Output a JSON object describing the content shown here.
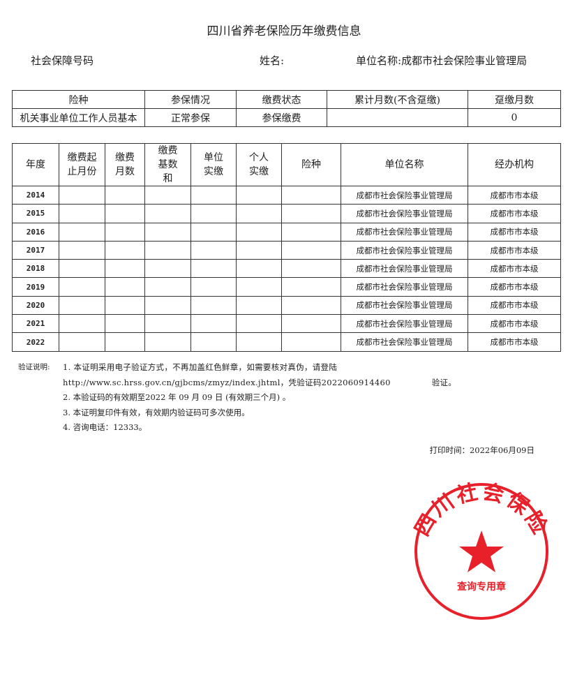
{
  "title": "四川省养老保险历年缴费信息",
  "info": {
    "ssn_label": "社会保障号码",
    "name_label": "姓名:",
    "unit_label": "单位名称:",
    "unit_value": "成都市社会保险事业管理局"
  },
  "summary": {
    "headers": [
      "险种",
      "参保情况",
      "缴费状态",
      "累计月数(不含趸缴)",
      "趸缴月数"
    ],
    "row": [
      "机关事业单位工作人员基本",
      "正常参保",
      "参保缴费",
      "",
      "0"
    ]
  },
  "detail": {
    "headers": [
      "年度",
      "缴费起止月份",
      "缴费月数",
      "缴费基数和",
      "单位实缴",
      "个人实缴",
      "险种",
      "单位名称",
      "经办机构"
    ],
    "rows": [
      {
        "year": "2014",
        "unit": "成都市社会保险事业管理局",
        "agency": "成都市市本级"
      },
      {
        "year": "2015",
        "unit": "成都市社会保险事业管理局",
        "agency": "成都市市本级"
      },
      {
        "year": "2016",
        "unit": "成都市社会保险事业管理局",
        "agency": "成都市市本级"
      },
      {
        "year": "2017",
        "unit": "成都市社会保险事业管理局",
        "agency": "成都市市本级"
      },
      {
        "year": "2018",
        "unit": "成都市社会保险事业管理局",
        "agency": "成都市市本级"
      },
      {
        "year": "2019",
        "unit": "成都市社会保险事业管理局",
        "agency": "成都市市本级"
      },
      {
        "year": "2020",
        "unit": "成都市社会保险事业管理局",
        "agency": "成都市市本级"
      },
      {
        "year": "2021",
        "unit": "成都市社会保险事业管理局",
        "agency": "成都市市本级"
      },
      {
        "year": "2022",
        "unit": "成都市社会保险事业管理局",
        "agency": "成都市市本级"
      }
    ]
  },
  "notes": {
    "label": "验证说明:",
    "items": [
      "1. 本证明采用电子验证方式，不再加盖红色鲜章，如需要核对真伪，请登陆http://www.sc.hrss.gov.cn/gjbcms/zmyz/index.jhtml，凭验证码2022060914460　　　　　验证。",
      "2. 本验证码的有效期至2022 年 09 月 09 日 (有效期三个月) 。",
      "3. 本证明复印件有效，有效期内验证码可多次使用。",
      "4. 咨询电话：12333。"
    ]
  },
  "print_time": "打印时间：2022年06月09日",
  "stamp": {
    "text": "四川社会保险",
    "subtext": "查询专用章",
    "color": "#e8202a"
  }
}
